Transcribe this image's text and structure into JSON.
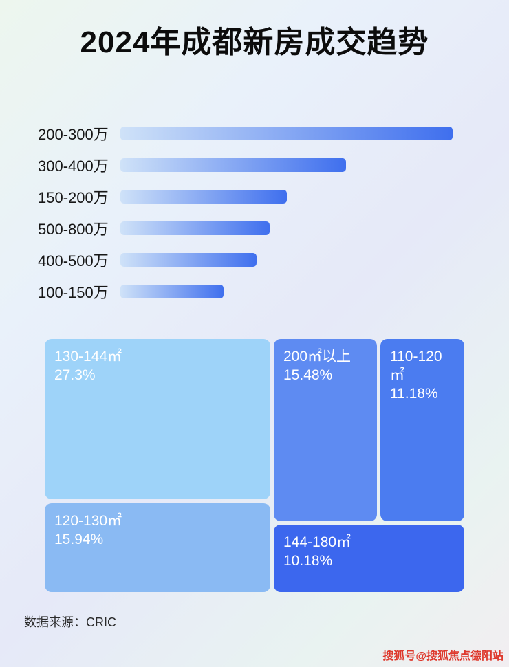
{
  "page": {
    "title": "2024年成都新房成交趋势",
    "source": "数据来源：CRIC",
    "watermark": "搜狐号@搜狐焦点德阳站"
  },
  "colors": {
    "bar_gradient": [
      "#cfe2f8",
      "#3f6fee"
    ],
    "watermark": "#de382c",
    "title_text": "#0c0c0c",
    "treemap_text": "#ffffff"
  },
  "chart_data": [
    {
      "type": "bar",
      "orientation": "horizontal",
      "title": "2024年成都新房成交趋势",
      "categories": [
        "200-300万",
        "300-400万",
        "150-200万",
        "500-800万",
        "400-500万",
        "100-150万"
      ],
      "values": [
        100,
        68,
        50,
        45,
        41,
        31
      ],
      "value_note": "relative bar lengths in percent of longest bar; no numeric axis shown in image",
      "xlabel": "",
      "ylabel": "",
      "grid": false,
      "legend": false
    },
    {
      "type": "treemap",
      "items": [
        {
          "label": "130-144㎡",
          "value": 27.3,
          "display": "27.3%",
          "color": "#9ed3f9"
        },
        {
          "label": "200㎡以上",
          "value": 15.48,
          "display": "15.48%",
          "color": "#5e8bf2"
        },
        {
          "label": "110-120㎡",
          "value": 11.18,
          "display": "11.18%",
          "color": "#4b7cf0"
        },
        {
          "label": "120-130㎡",
          "value": 15.94,
          "display": "15.94%",
          "color": "#8abaf3"
        },
        {
          "label": "144-180㎡",
          "value": 10.18,
          "display": "10.18%",
          "color": "#3c67ee"
        }
      ]
    }
  ]
}
